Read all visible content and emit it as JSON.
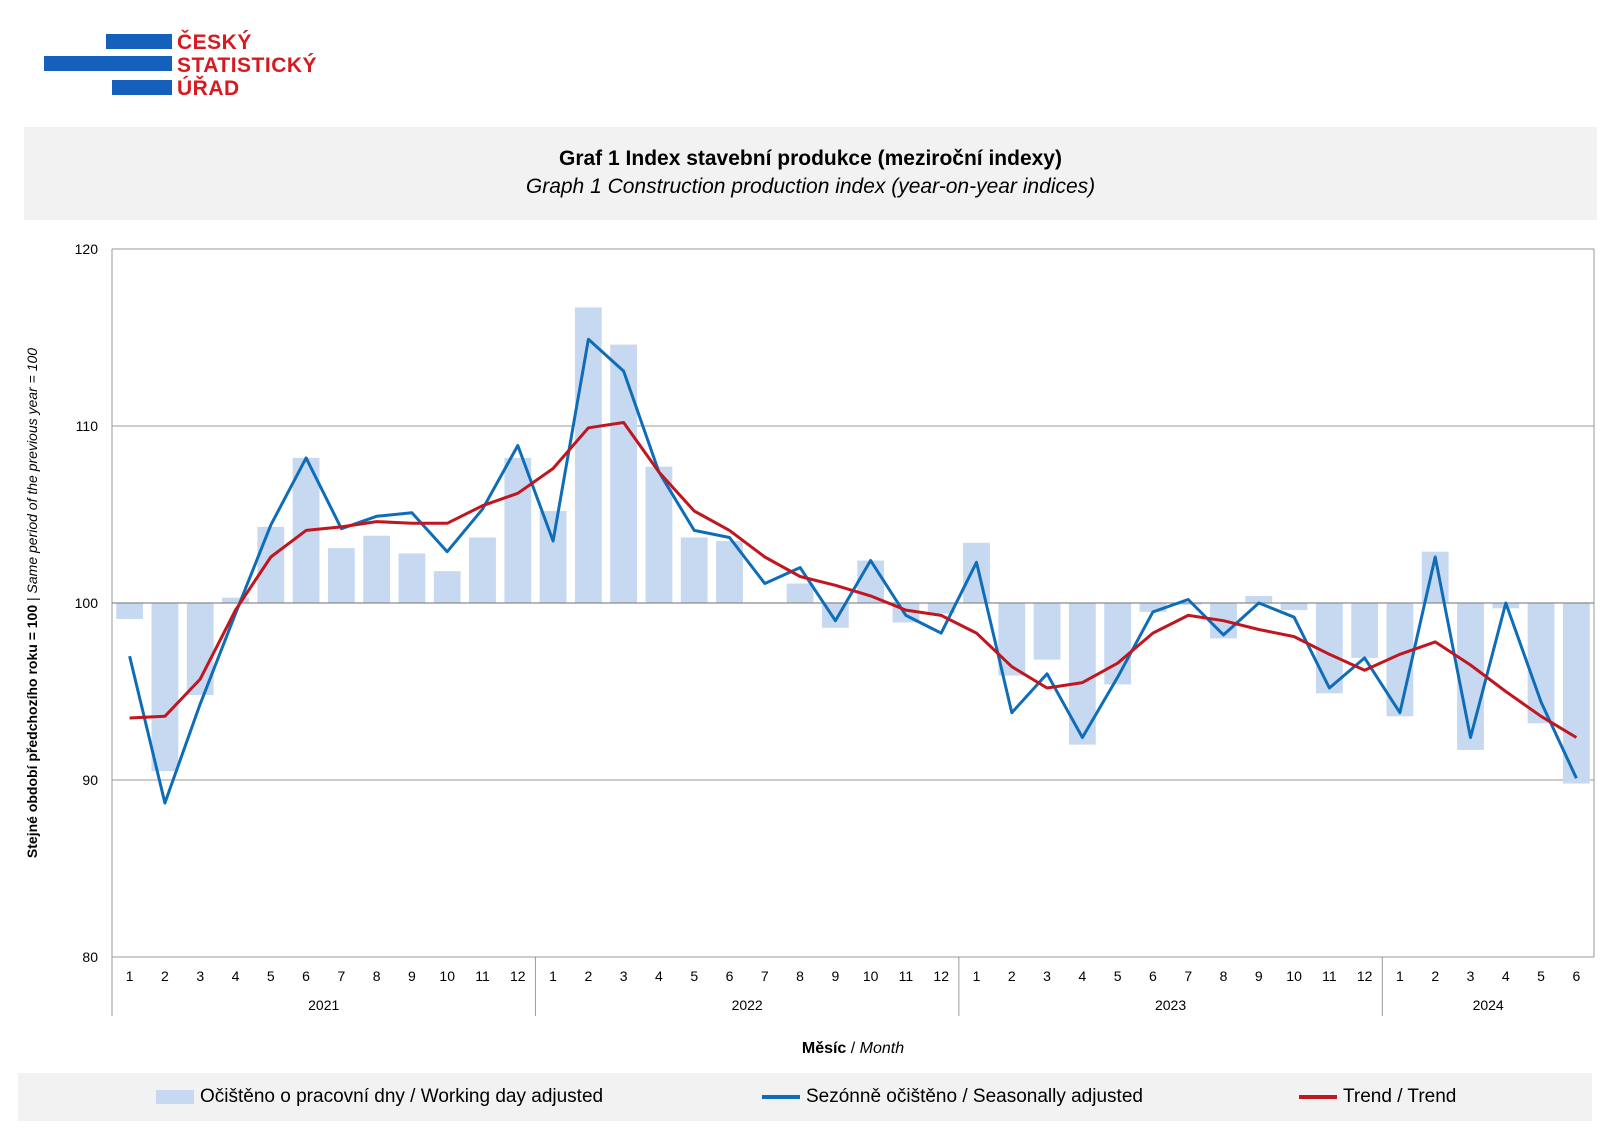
{
  "logo": {
    "line1": "ČESKÝ",
    "line2": "STATISTICKÝ",
    "line3": "ÚŘAD",
    "bar_color": "#1560bd",
    "text_color": "#d71920"
  },
  "header": {
    "title_cs": "Graf 1 Index stavební produkce (meziroční indexy)",
    "title_en": "Graph 1 Construction production index (year-on-year indices)"
  },
  "axes": {
    "ylabel_bold": "Stejné období předchozího roku = 100",
    "ylabel_sep": " | ",
    "ylabel_italic": "Same period of the previous year = 100",
    "xlabel_bold": "Měsíc",
    "xlabel_sep": " / ",
    "xlabel_italic": "Month"
  },
  "legend": {
    "wda": "Očištěno o pracovní dny / Working day adjusted",
    "sa": "Sezónně očištěno / Seasonally adjusted",
    "trend": "Trend / Trend"
  },
  "colors": {
    "wda": "#c6d9f1",
    "sa": "#0f6db8",
    "trend": "#c0161f",
    "grid": "#9a9a9a"
  },
  "chart_data": {
    "type": "bar",
    "title": "Graf 1 Index stavební produkce (meziroční indexy)",
    "subtitle": "Graph 1 Construction production index (year-on-year indices)",
    "xlabel": "Měsíc / Month",
    "ylabel": "Stejné období předchozího roku = 100 | Same period of the previous year = 100",
    "ylim": [
      80,
      120
    ],
    "yticks": [
      80,
      90,
      100,
      110,
      120
    ],
    "baseline": 100,
    "grid": true,
    "legend_position": "bottom",
    "years": [
      {
        "label": "2021",
        "months": 12
      },
      {
        "label": "2022",
        "months": 12
      },
      {
        "label": "2023",
        "months": 12
      },
      {
        "label": "2024",
        "months": 6
      }
    ],
    "categories": [
      "1",
      "2",
      "3",
      "4",
      "5",
      "6",
      "7",
      "8",
      "9",
      "10",
      "11",
      "12",
      "1",
      "2",
      "3",
      "4",
      "5",
      "6",
      "7",
      "8",
      "9",
      "10",
      "11",
      "12",
      "1",
      "2",
      "3",
      "4",
      "5",
      "6",
      "7",
      "8",
      "9",
      "10",
      "11",
      "12",
      "1",
      "2",
      "3",
      "4",
      "5",
      "6"
    ],
    "series": [
      {
        "name": "Očištěno o pracovní dny / Working day adjusted",
        "kind": "bar",
        "values": [
          99.1,
          90.5,
          94.8,
          100.3,
          104.3,
          108.2,
          103.1,
          103.8,
          102.8,
          101.8,
          103.7,
          108.2,
          105.2,
          116.7,
          114.6,
          107.7,
          103.7,
          103.5,
          100.0,
          101.1,
          98.6,
          102.4,
          98.9,
          99.4,
          103.4,
          95.9,
          96.8,
          92.0,
          95.4,
          99.5,
          99.9,
          98.0,
          100.4,
          99.6,
          94.9,
          96.9,
          93.6,
          102.9,
          91.7,
          99.7,
          93.2,
          89.8
        ]
      },
      {
        "name": "Sezónně očištěno / Seasonally adjusted",
        "kind": "line",
        "values": [
          97.0,
          88.7,
          94.3,
          99.4,
          104.4,
          108.2,
          104.2,
          104.9,
          105.1,
          102.9,
          105.3,
          108.9,
          103.5,
          114.9,
          113.1,
          107.4,
          104.1,
          103.7,
          101.1,
          102.0,
          99.0,
          102.4,
          99.3,
          98.3,
          102.3,
          93.8,
          96.0,
          92.4,
          95.8,
          99.5,
          100.2,
          98.2,
          100.0,
          99.2,
          95.2,
          96.9,
          93.8,
          102.6,
          92.4,
          100.0,
          94.4,
          90.1
        ]
      },
      {
        "name": "Trend / Trend",
        "kind": "line",
        "values": [
          93.5,
          93.6,
          95.7,
          99.6,
          102.6,
          104.1,
          104.3,
          104.6,
          104.5,
          104.5,
          105.5,
          106.2,
          107.6,
          109.9,
          110.2,
          107.4,
          105.2,
          104.1,
          102.6,
          101.5,
          101.0,
          100.4,
          99.6,
          99.3,
          98.3,
          96.4,
          95.2,
          95.5,
          96.6,
          98.3,
          99.3,
          99.0,
          98.5,
          98.1,
          97.1,
          96.2,
          97.1,
          97.8,
          96.5,
          95.0,
          93.6,
          92.4
        ]
      }
    ]
  }
}
